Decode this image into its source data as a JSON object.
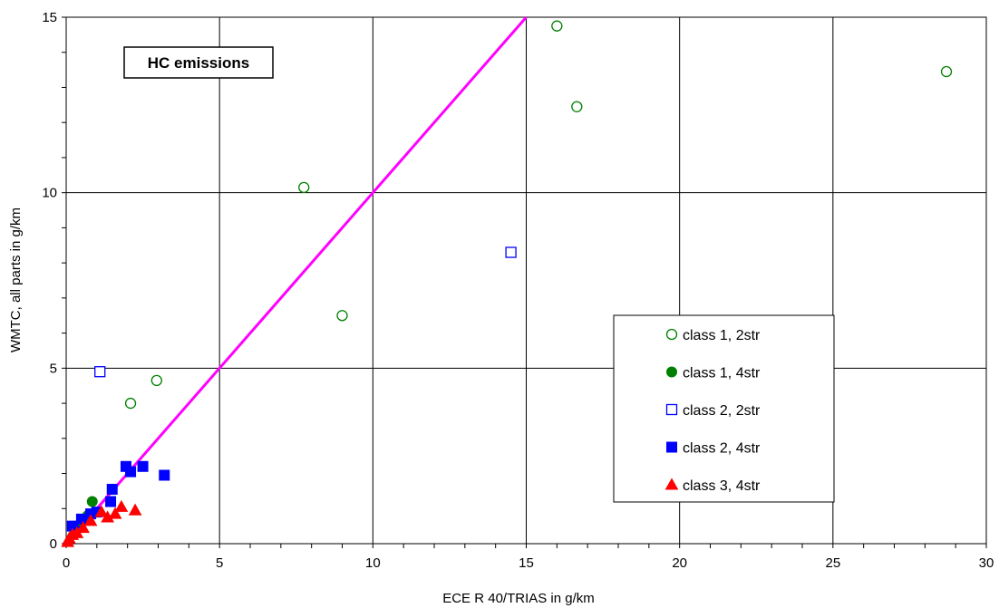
{
  "chart_data": {
    "type": "scatter",
    "xlabel": "ECE R 40/TRIAS in g/km",
    "ylabel": "WMTC, all parts in g/km",
    "xlim": [
      0,
      30
    ],
    "ylim": [
      0,
      15
    ],
    "x_ticks": [
      0,
      5,
      10,
      15,
      20,
      25,
      30
    ],
    "y_ticks": [
      0,
      5,
      10,
      15
    ],
    "grid": true,
    "legend_position": "right",
    "annotation": "HC emissions",
    "colors": {
      "green": "#008000",
      "blue": "#0000ff",
      "red": "#ff0000",
      "reference_line": "#ff00ff"
    },
    "reference_line": {
      "x": [
        0,
        15
      ],
      "y": [
        0,
        15
      ]
    },
    "series": [
      {
        "name": "class 1, 2str",
        "marker": "circle-open",
        "color": "#008000",
        "points": [
          [
            2.1,
            4.0
          ],
          [
            2.95,
            4.65
          ],
          [
            7.75,
            10.15
          ],
          [
            9.0,
            6.5
          ],
          [
            16.0,
            14.75
          ],
          [
            16.65,
            12.45
          ],
          [
            28.7,
            13.45
          ]
        ]
      },
      {
        "name": "class 1, 4str",
        "marker": "circle-filled",
        "color": "#008000",
        "points": [
          [
            0.85,
            1.2
          ],
          [
            0.5,
            0.65
          ],
          [
            0.3,
            0.5
          ],
          [
            0.7,
            0.8
          ]
        ]
      },
      {
        "name": "class 2, 2str",
        "marker": "square-open",
        "color": "#0000ff",
        "points": [
          [
            1.1,
            4.9
          ],
          [
            14.5,
            8.3
          ]
        ]
      },
      {
        "name": "class 2, 4str",
        "marker": "square-filled",
        "color": "#0000ff",
        "points": [
          [
            1.95,
            2.2
          ],
          [
            2.1,
            2.05
          ],
          [
            2.5,
            2.2
          ],
          [
            3.2,
            1.95
          ],
          [
            1.5,
            1.55
          ],
          [
            1.45,
            1.2
          ],
          [
            1.0,
            0.9
          ],
          [
            0.5,
            0.7
          ],
          [
            0.2,
            0.5
          ],
          [
            0.8,
            0.85
          ],
          [
            0.3,
            0.35
          ]
        ]
      },
      {
        "name": "class 3, 4str",
        "marker": "triangle-filled",
        "color": "#ff0000",
        "points": [
          [
            2.25,
            0.95
          ],
          [
            1.8,
            1.05
          ],
          [
            1.6,
            0.85
          ],
          [
            1.35,
            0.75
          ],
          [
            1.15,
            0.9
          ],
          [
            0.8,
            0.65
          ],
          [
            0.55,
            0.45
          ],
          [
            0.35,
            0.3
          ],
          [
            0.2,
            0.25
          ],
          [
            0.1,
            0.15
          ],
          [
            0.05,
            0.05
          ]
        ]
      }
    ]
  }
}
